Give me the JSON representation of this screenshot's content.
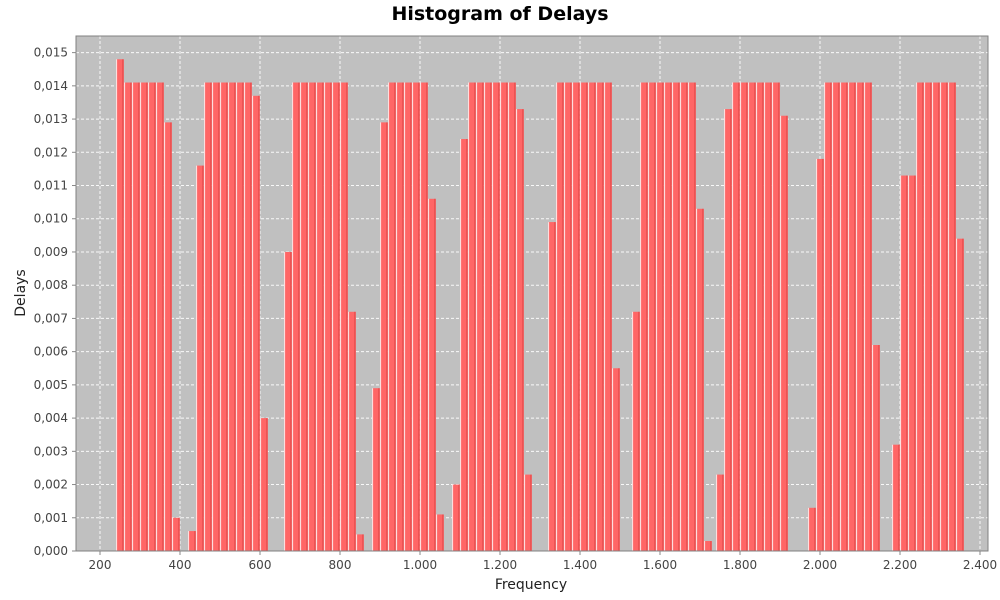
{
  "chart_data": {
    "type": "bar",
    "title": "Histogram of Delays",
    "xlabel": "Frequency",
    "ylabel": "Delays",
    "xlim": [
      140,
      2420
    ],
    "ylim": [
      0,
      0.0155
    ],
    "grid": true,
    "background": "#c0c0c0",
    "bar_color": "#ff6666",
    "bar_width": 19.5,
    "x_ticks": [
      200,
      400,
      600,
      800,
      1000,
      1200,
      1400,
      1600,
      1800,
      2000,
      2200,
      2400
    ],
    "x_tick_labels": [
      "200",
      "400",
      "600",
      "800",
      "1.000",
      "1.200",
      "1.400",
      "1.600",
      "1.800",
      "2.000",
      "2.200",
      "2.400"
    ],
    "y_ticks": [
      0,
      0.001,
      0.002,
      0.003,
      0.004,
      0.005,
      0.006,
      0.007,
      0.008,
      0.009,
      0.01,
      0.011,
      0.012,
      0.013,
      0.014,
      0.015
    ],
    "y_tick_labels": [
      "0,000",
      "0,001",
      "0,002",
      "0,003",
      "0,004",
      "0,005",
      "0,006",
      "0,007",
      "0,008",
      "0,009",
      "0,010",
      "0,011",
      "0,012",
      "0,013",
      "0,014",
      "0,015"
    ],
    "x": [
      250,
      270,
      290,
      310,
      330,
      350,
      370,
      390,
      430,
      450,
      470,
      490,
      510,
      530,
      550,
      570,
      590,
      610,
      670,
      690,
      710,
      730,
      750,
      770,
      790,
      810,
      830,
      850,
      890,
      910,
      930,
      950,
      970,
      990,
      1010,
      1030,
      1050,
      1090,
      1110,
      1130,
      1150,
      1170,
      1190,
      1210,
      1230,
      1250,
      1270,
      1330,
      1350,
      1370,
      1390,
      1410,
      1430,
      1450,
      1470,
      1490,
      1540,
      1560,
      1580,
      1600,
      1620,
      1640,
      1660,
      1680,
      1700,
      1720,
      1750,
      1770,
      1790,
      1810,
      1830,
      1850,
      1870,
      1890,
      1910,
      1980,
      2000,
      2020,
      2040,
      2060,
      2080,
      2100,
      2120,
      2140,
      2190,
      2210,
      2230,
      2250,
      2270,
      2290,
      2310,
      2330,
      2350
    ],
    "values": [
      0.0148,
      0.0141,
      0.0141,
      0.0141,
      0.0141,
      0.0141,
      0.0129,
      0.001,
      0.0006,
      0.0116,
      0.0141,
      0.0141,
      0.0141,
      0.0141,
      0.0141,
      0.0141,
      0.0137,
      0.004,
      0.009,
      0.0141,
      0.0141,
      0.0141,
      0.0141,
      0.0141,
      0.0141,
      0.0141,
      0.0072,
      0.0005,
      0.0049,
      0.0129,
      0.0141,
      0.0141,
      0.0141,
      0.0141,
      0.0141,
      0.0106,
      0.0011,
      0.002,
      0.0124,
      0.0141,
      0.0141,
      0.0141,
      0.0141,
      0.0141,
      0.0141,
      0.0133,
      0.0023,
      0.0099,
      0.0141,
      0.0141,
      0.0141,
      0.0141,
      0.0141,
      0.0141,
      0.0141,
      0.0055,
      0.0072,
      0.0141,
      0.0141,
      0.0141,
      0.0141,
      0.0141,
      0.0141,
      0.0141,
      0.0103,
      0.0003,
      0.0023,
      0.0133,
      0.0141,
      0.0141,
      0.0141,
      0.0141,
      0.0141,
      0.0141,
      0.0131,
      0.0013,
      0.0118,
      0.0141,
      0.0141,
      0.0141,
      0.0141,
      0.0141,
      0.0141,
      0.0062,
      0.0032,
      0.0113,
      0.0113,
      0.0141,
      0.0141,
      0.0141,
      0.0141,
      0.0141,
      0.0094
    ]
  }
}
